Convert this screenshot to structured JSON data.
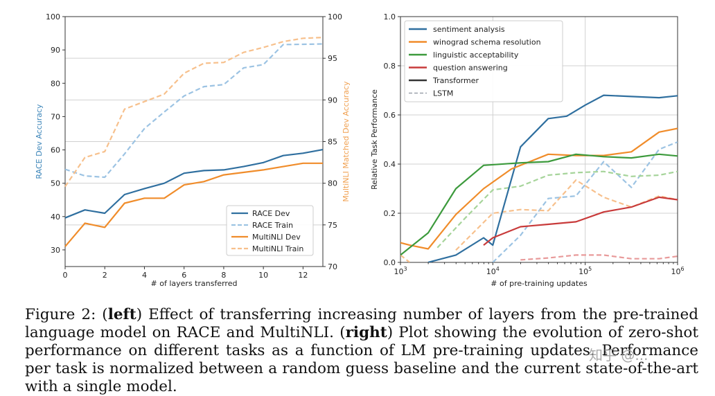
{
  "chart_data": [
    {
      "type": "line",
      "id": "left",
      "xlabel": "# of layers transferred",
      "ylabel_left": "RACE Dev Accuracy",
      "ylabel_right": "MultiNLI Matched Dev Accuracy",
      "xlim": [
        0,
        13
      ],
      "ylim_left": [
        25,
        100
      ],
      "ylim_right": [
        70,
        100
      ],
      "xticks": [
        0,
        2,
        4,
        6,
        8,
        10,
        12
      ],
      "yticks_left": [
        30,
        40,
        50,
        60,
        70,
        80,
        90,
        100
      ],
      "yticks_right": [
        70,
        75,
        80,
        85,
        90,
        95,
        100
      ],
      "legend_position": "lower-right",
      "series": [
        {
          "name": "RACE Dev",
          "axis": "left",
          "style": "solid",
          "color": "#2f6f9f",
          "x": [
            0,
            1,
            2,
            3,
            4,
            5,
            6,
            7,
            8,
            9,
            10,
            11,
            12,
            13
          ],
          "y": [
            39.6,
            42,
            41,
            46.6,
            48.4,
            50,
            53,
            53.8,
            54,
            55,
            56.2,
            58.3,
            59,
            60.1
          ]
        },
        {
          "name": "RACE Train",
          "axis": "left",
          "style": "dashed",
          "color": "#9cc3e3",
          "x": [
            0,
            1,
            2,
            3,
            4,
            5,
            6,
            7,
            8,
            9,
            10,
            11,
            12,
            13
          ],
          "y": [
            54.2,
            52.2,
            51.8,
            58.8,
            66.4,
            71.4,
            76.2,
            79,
            79.6,
            84.6,
            85.6,
            91.6,
            91.7,
            91.8
          ]
        },
        {
          "name": "MultiNLI Dev",
          "axis": "right",
          "style": "solid",
          "color": "#f08c2a",
          "x": [
            0,
            1,
            2,
            3,
            4,
            5,
            6,
            7,
            8,
            9,
            10,
            11,
            12,
            13
          ],
          "y": [
            72.4,
            75.2,
            74.7,
            77.6,
            78.2,
            78.2,
            79.8,
            80.2,
            81,
            81.3,
            81.6,
            82,
            82.4,
            82.4
          ]
        },
        {
          "name": "MultiNLI Train",
          "axis": "right",
          "style": "dashed",
          "color": "#f7c08c",
          "x": [
            0,
            1,
            2,
            3,
            4,
            5,
            6,
            7,
            8,
            9,
            10,
            11,
            12,
            13
          ],
          "y": [
            79.6,
            83.1,
            83.8,
            88.9,
            89.8,
            90.7,
            93.2,
            94.4,
            94.5,
            95.7,
            96.3,
            97,
            97.4,
            97.5
          ]
        }
      ]
    },
    {
      "type": "line",
      "id": "right",
      "xlabel": "# of pre-training updates",
      "ylabel": "Relative Task Performance",
      "xscale": "log",
      "xlim_log10": [
        3,
        6
      ],
      "ylim": [
        0,
        1
      ],
      "xticks": [
        {
          "base": "10",
          "exp": "3",
          "log10": 3
        },
        {
          "base": "10",
          "exp": "4",
          "log10": 4
        },
        {
          "base": "10",
          "exp": "5",
          "log10": 5
        },
        {
          "base": "10",
          "exp": "6",
          "log10": 6
        }
      ],
      "yticks": [
        "0.0",
        "0.2",
        "0.4",
        "0.6",
        "0.8",
        "1.0"
      ],
      "legend_position": "upper-left",
      "legend": [
        {
          "name": "sentiment analysis",
          "color": "#2f6f9f",
          "style": "solid"
        },
        {
          "name": "winograd schema resolution",
          "color": "#f08c2a",
          "style": "solid"
        },
        {
          "name": "linguistic acceptability",
          "color": "#3c9a3c",
          "style": "solid"
        },
        {
          "name": "question answering",
          "color": "#c83a3a",
          "style": "solid"
        },
        {
          "name": "Transformer",
          "color": "#333333",
          "style": "solid"
        },
        {
          "name": "LSTM",
          "color": "#9aa0aa",
          "style": "dashed"
        }
      ],
      "series": [
        {
          "name": "sentiment analysis (Transformer)",
          "color": "#2f6f9f",
          "style": "solid",
          "x_log10": [
            3.3,
            3.6,
            3.9,
            4,
            4.3,
            4.6,
            4.8,
            5,
            5.2,
            5.5,
            5.8,
            6
          ],
          "y": [
            0,
            0.03,
            0.1,
            0.07,
            0.47,
            0.585,
            0.595,
            0.64,
            0.68,
            0.675,
            0.67,
            0.678
          ]
        },
        {
          "name": "winograd schema resolution (Transformer)",
          "color": "#f08c2a",
          "style": "solid",
          "x_log10": [
            3,
            3.1,
            3.3,
            3.6,
            3.9,
            4.2,
            4.6,
            4.9,
            5.2,
            5.5,
            5.8,
            6
          ],
          "y": [
            0.08,
            0.07,
            0.055,
            0.195,
            0.3,
            0.38,
            0.44,
            0.435,
            0.435,
            0.45,
            0.53,
            0.545
          ]
        },
        {
          "name": "linguistic acceptability (Transformer)",
          "color": "#3c9a3c",
          "style": "solid",
          "x_log10": [
            3,
            3.3,
            3.6,
            3.9,
            4.3,
            4.6,
            4.9,
            5.2,
            5.5,
            5.8,
            6
          ],
          "y": [
            0.03,
            0.12,
            0.3,
            0.395,
            0.405,
            0.41,
            0.44,
            0.43,
            0.425,
            0.44,
            0.433
          ]
        },
        {
          "name": "question answering (Transformer)",
          "color": "#c83a3a",
          "style": "solid",
          "x_log10": [
            3.9,
            4,
            4.3,
            4.6,
            4.9,
            5.2,
            5.5,
            5.8,
            6
          ],
          "y": [
            0.07,
            0.1,
            0.145,
            0.155,
            0.165,
            0.205,
            0.225,
            0.265,
            0.255
          ]
        },
        {
          "name": "sentiment analysis (LSTM)",
          "color": "#9cc3e3",
          "style": "dashed",
          "x_log10": [
            4,
            4.3,
            4.6,
            4.9,
            5.2,
            5.5,
            5.8,
            6
          ],
          "y": [
            0,
            0.11,
            0.26,
            0.27,
            0.41,
            0.305,
            0.46,
            0.49
          ]
        },
        {
          "name": "winograd schema resolution (LSTM)",
          "color": "#f7c08c",
          "style": "dashed",
          "x_log10": [
            3.6,
            4,
            4.3,
            4.6,
            4.9,
            5.2,
            5.5,
            5.8,
            6
          ],
          "y": [
            0.05,
            0.2,
            0.215,
            0.21,
            0.335,
            0.265,
            0.225,
            0.27,
            0.255
          ]
        },
        {
          "name": "linguistic acceptability (LSTM)",
          "color": "#a6d49a",
          "style": "dashed",
          "x_log10": [
            3.4,
            3.7,
            4,
            4.3,
            4.6,
            4.9,
            5.2,
            5.5,
            5.8,
            6
          ],
          "y": [
            0.06,
            0.18,
            0.295,
            0.31,
            0.355,
            0.365,
            0.37,
            0.35,
            0.355,
            0.37
          ]
        },
        {
          "name": "question answering (LSTM)",
          "color": "#e89a9a",
          "style": "dashed",
          "x_log10": [
            4.3,
            4.6,
            4.9,
            5.2,
            5.5,
            5.8,
            6
          ],
          "y": [
            0.01,
            0.018,
            0.03,
            0.03,
            0.015,
            0.015,
            0.025
          ]
        },
        {
          "name": "winograd schema resolution (LSTM, start)",
          "color": "#f7c08c",
          "style": "dashed",
          "x_log10": [
            3,
            3.1
          ],
          "y": [
            0.03,
            0
          ]
        }
      ]
    }
  ],
  "caption": {
    "figure_label": "Figure 2: (",
    "left_bold": "left",
    "left_text": ") Effect of transferring increasing number of layers from the pre-trained language model on RACE and MultiNLI. (",
    "right_bold": "right",
    "right_text": ") Plot showing the evolution of zero-shot performance on different tasks as a function of LM pre-training updates. Performance per task is normalized between a random guess baseline and the current state-of-the-art with a single model."
  },
  "watermark": "知乎 @..."
}
